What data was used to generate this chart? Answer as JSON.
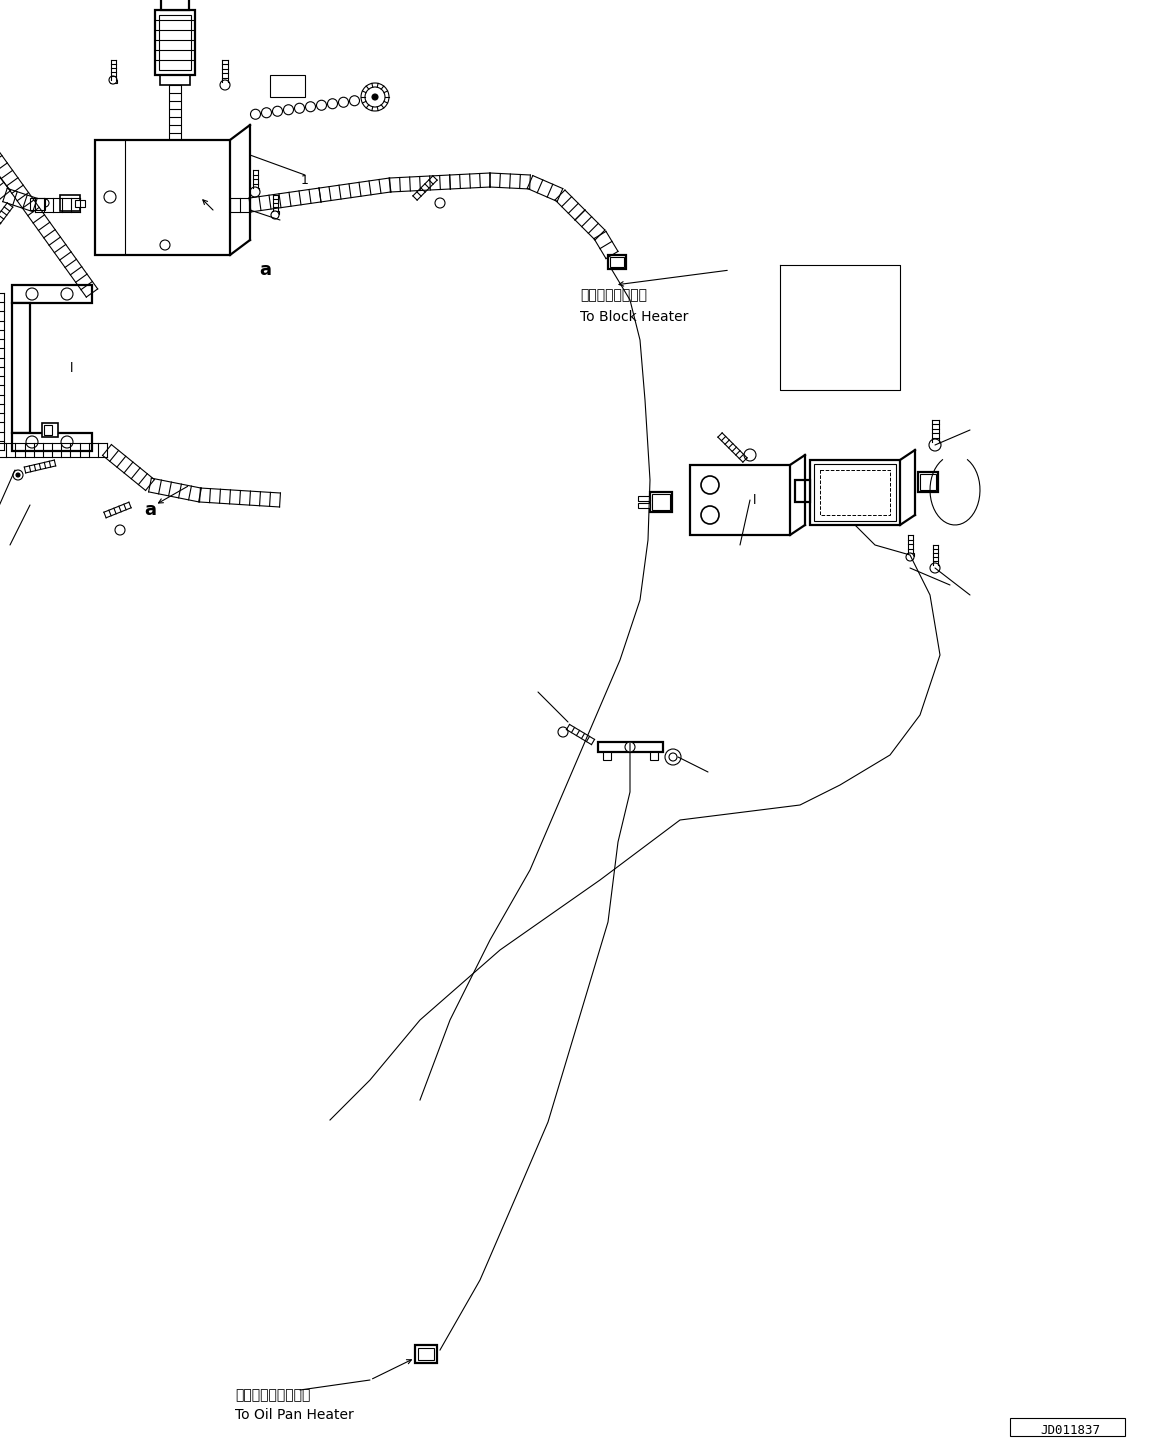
{
  "background_color": "#ffffff",
  "line_color": "#000000",
  "fig_width": 11.63,
  "fig_height": 14.54,
  "dpi": 100,
  "label_block_heater_jp": "ブロックヒータヘ",
  "label_block_heater_en": "To Block Heater",
  "label_oil_pan_jp": "オイルパンヒータヘ",
  "label_oil_pan_en": "To Oil Pan Heater",
  "label_a1": "a",
  "label_a2": "a",
  "part_num": "JD011837",
  "font_size_jp": 10,
  "font_size_en": 10,
  "font_size_label": 13,
  "font_size_partnum": 9
}
